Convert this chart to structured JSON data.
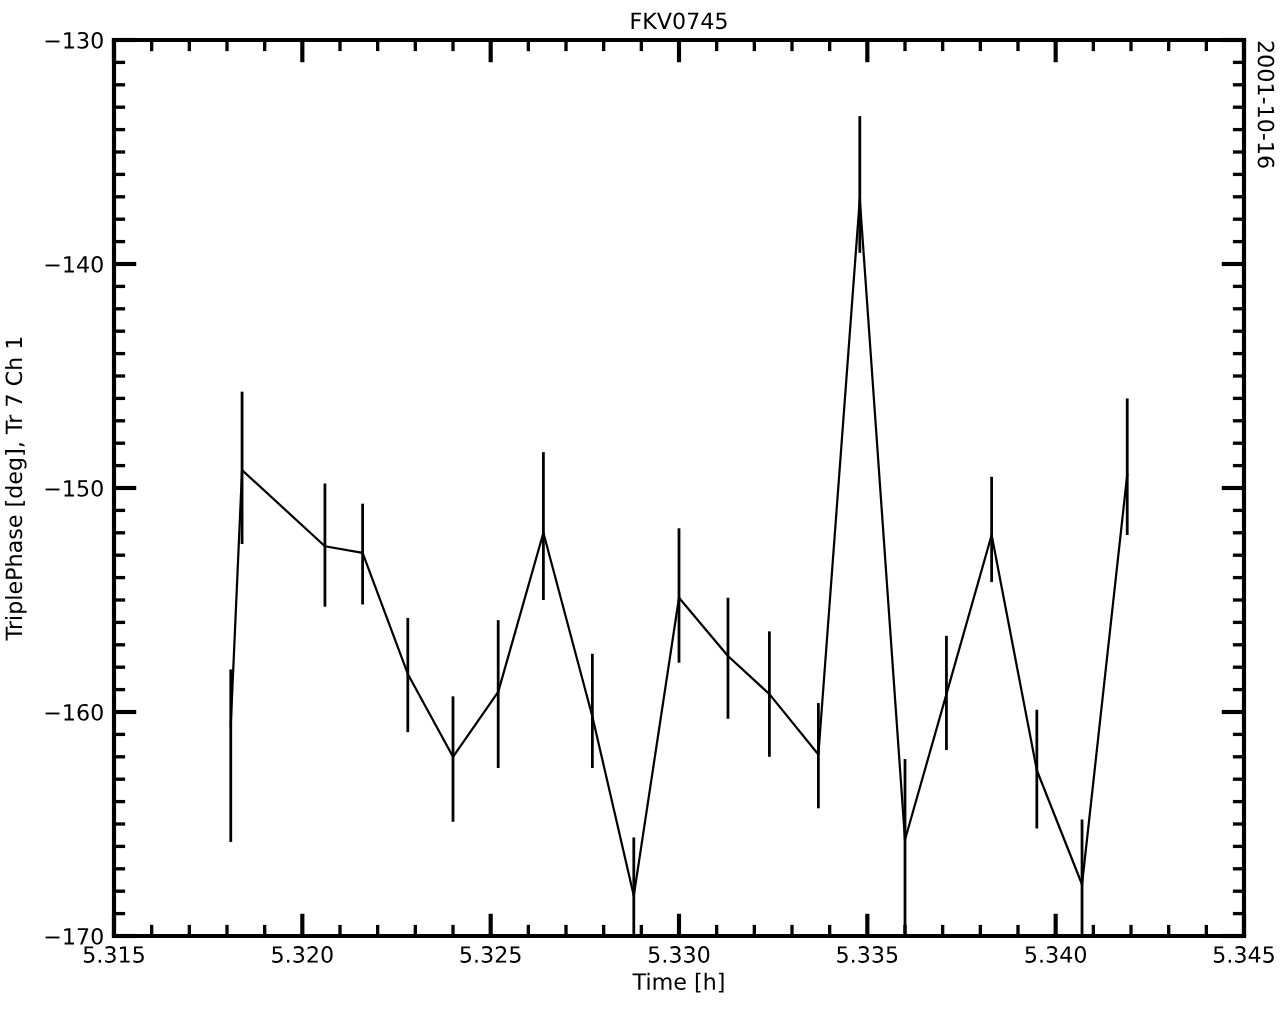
{
  "chart_data": {
    "type": "line",
    "title": "FKV0745",
    "xlabel": "Time [h]",
    "ylabel": "TriplePhase [deg], Tr 7 Ch 1",
    "annotations": [
      "2001-10-16"
    ],
    "x": [
      5.3181,
      5.3184,
      5.3206,
      5.3216,
      5.3228,
      5.324,
      5.3252,
      5.3264,
      5.3277,
      5.3288,
      5.33,
      5.3313,
      5.3324,
      5.3337,
      5.3348,
      5.336,
      5.3371,
      5.3383,
      5.3395,
      5.3407,
      5.3419
    ],
    "series": [
      {
        "color": "#000000",
        "values": [
          -160.6,
          -149.2,
          -152.6,
          -152.9,
          -158.3,
          -162.0,
          -159.1,
          -152.0,
          -160.2,
          -168.2,
          -154.9,
          -157.5,
          -159.2,
          -161.9,
          -137.1,
          -165.7,
          -159.2,
          -152.1,
          -162.6,
          -167.7,
          -149.4
        ],
        "errors": [
          [
            -165.8,
            -158.1
          ],
          [
            -152.5,
            -145.7
          ],
          [
            -155.3,
            -149.8
          ],
          [
            -155.2,
            -150.7
          ],
          [
            -160.9,
            -155.8
          ],
          [
            -164.9,
            -159.3
          ],
          [
            -162.5,
            -155.9
          ],
          [
            -155.0,
            -148.4
          ],
          [
            -162.5,
            -157.4
          ],
          [
            -170,
            -165.6
          ],
          [
            -157.8,
            -151.8
          ],
          [
            -160.3,
            -154.9
          ],
          [
            -162.0,
            -156.4
          ],
          [
            -164.3,
            -159.6
          ],
          [
            -139.5,
            -133.4
          ],
          [
            -170,
            -162.1
          ],
          [
            -161.7,
            -156.6
          ],
          [
            -154.2,
            -149.5
          ],
          [
            -165.2,
            -159.9
          ],
          [
            -170,
            -164.8
          ],
          [
            -152.1,
            -146.0
          ]
        ]
      }
    ],
    "xlim": [
      5.315,
      5.345
    ],
    "xticks": [
      5.315,
      {
        "value": 5.32,
        "label": "5.320"
      },
      5.325,
      {
        "value": 5.33,
        "label": "5.330"
      },
      5.335,
      {
        "value": 5.34,
        "label": "5.340"
      },
      5.345
    ],
    "ylim": [
      -170,
      -130
    ],
    "yticks": [
      -170,
      -160,
      -150,
      -140,
      -130
    ],
    "grid": false,
    "marker": "none",
    "line_style": "solid"
  }
}
